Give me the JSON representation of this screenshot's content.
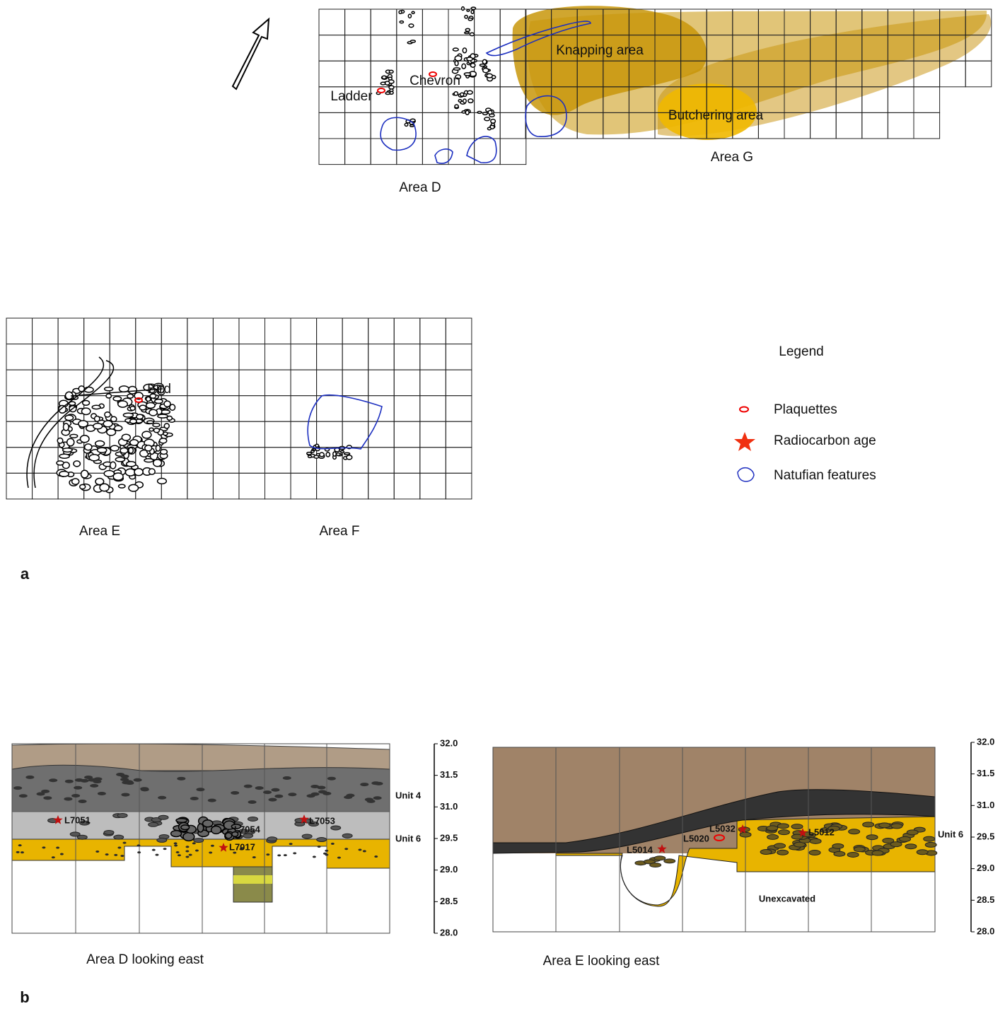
{
  "panel_a": {
    "label": "a",
    "areas": [
      "Area D",
      "Area G",
      "Area E",
      "Area F"
    ],
    "features": [
      "Knapping area",
      "Butchering area",
      "Chevron",
      "Ladder",
      "Bird"
    ],
    "legend": {
      "title": "Legend",
      "items": [
        "Plaquettes",
        "Radiocarbon age",
        "Natufian features"
      ]
    }
  },
  "panel_b": {
    "label": "b",
    "sections": [
      {
        "title": "Area D looking east",
        "loci": [
          "L7051",
          "L7054",
          "L7053",
          "L7017"
        ],
        "units": [
          "Unit 4",
          "Unit 6"
        ],
        "scale": [
          "32.0",
          "31.5",
          "31.0",
          "29.5",
          "29.0",
          "28.5",
          "28.0"
        ]
      },
      {
        "title": "Area E looking east",
        "loci": [
          "L5014",
          "L5020",
          "L5032",
          "L5012"
        ],
        "units": [
          "Unit 6"
        ],
        "note": "Unexcavated",
        "scale": [
          "32.0",
          "31.5",
          "31.0",
          "29.5",
          "29.0",
          "28.5",
          "28.0"
        ]
      }
    ]
  }
}
